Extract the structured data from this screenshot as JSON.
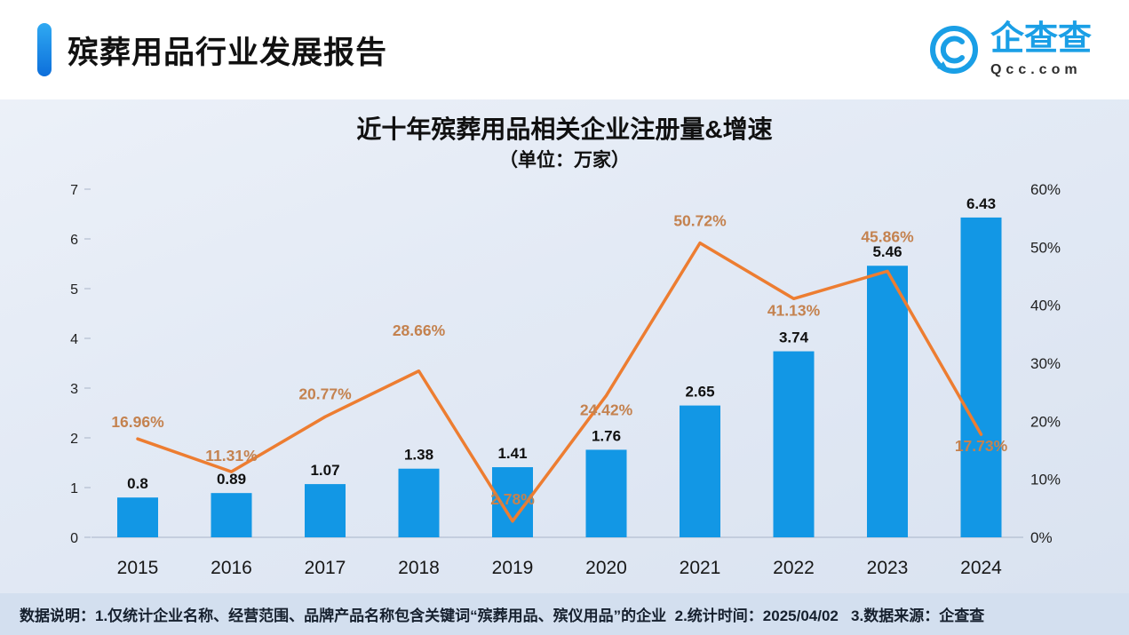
{
  "header": {
    "title": "殡葬用品行业发展报告",
    "logo_text": "企查查",
    "logo_domain": "Qcc.com"
  },
  "chart_data": {
    "type": "combo",
    "title": "近十年殡葬用品相关企业注册量&增速",
    "subtitle": "（单位：万家）",
    "categories": [
      "2015",
      "2016",
      "2017",
      "2018",
      "2019",
      "2020",
      "2021",
      "2022",
      "2023",
      "2024"
    ],
    "series": [
      {
        "name": "注册量",
        "type": "bar",
        "values": [
          0.8,
          0.89,
          1.07,
          1.38,
          1.41,
          1.76,
          2.65,
          3.74,
          5.46,
          6.43
        ],
        "labels": [
          "0.8",
          "0.89",
          "1.07",
          "1.38",
          "1.41",
          "1.76",
          "2.65",
          "3.74",
          "5.46",
          "6.43"
        ]
      },
      {
        "name": "增速",
        "type": "line",
        "values": [
          16.96,
          11.31,
          20.77,
          28.66,
          2.78,
          24.42,
          50.72,
          41.13,
          45.86,
          17.73
        ],
        "labels": [
          "16.96%",
          "11.31%",
          "20.77%",
          "28.66%",
          "2.78%",
          "24.42%",
          "50.72%",
          "41.13%",
          "45.86%",
          "17.73%"
        ],
        "label_dy": [
          -13,
          -12,
          -20,
          -40,
          -19,
          22,
          -19,
          19,
          -33,
          19
        ]
      }
    ],
    "left_axis": {
      "min": 0,
      "max": 7,
      "ticks": [
        0,
        1,
        2,
        3,
        4,
        5,
        6,
        7
      ]
    },
    "right_axis": {
      "min": 0,
      "max": 60,
      "tick_values": [
        0,
        10,
        20,
        30,
        40,
        50,
        60
      ],
      "tick_labels": [
        "0%",
        "10%",
        "20%",
        "30%",
        "40%",
        "50%",
        "60%"
      ]
    },
    "legend": "none",
    "grid": "off",
    "colors": {
      "bar": "#1297E5",
      "line": "#ED7D31",
      "line_label": "#C4824F",
      "axis_text": "#1f1f1f"
    }
  },
  "footer": {
    "note": "数据说明：1.仅统计企业名称、经营范围、品牌产品名称包含关键词“殡葬用品、殡仪用品”的企业  2.统计时间：2025/04/02   3.数据来源：企查查"
  }
}
